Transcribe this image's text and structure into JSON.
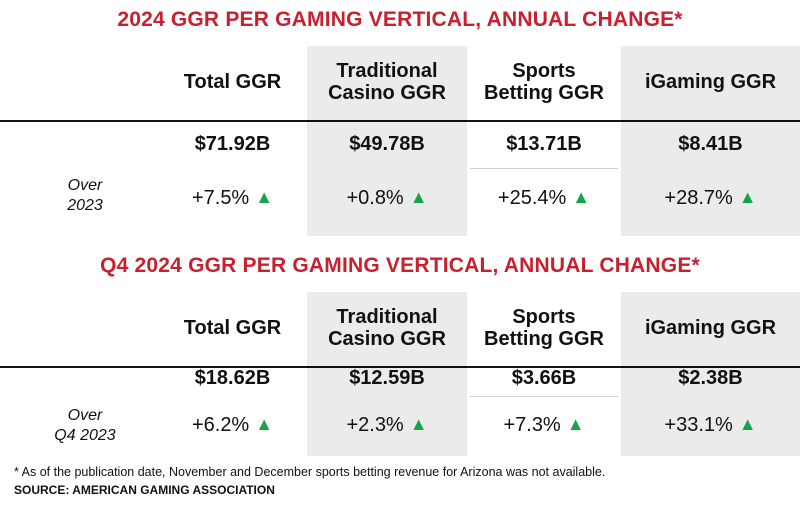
{
  "tables": [
    {
      "title": "2024 GGR PER GAMING VERTICAL, ANNUAL CHANGE*",
      "headers": [
        "Total GGR",
        "Traditional\nCasino GGR",
        "Sports\nBetting GGR",
        "iGaming GGR"
      ],
      "totals": [
        "$71.92B",
        "$49.78B",
        "$13.71B",
        "$8.41B"
      ],
      "row_label": "Over\n2023",
      "changes": [
        "+7.5%",
        "+0.8%",
        "+25.4%",
        "+28.7%"
      ]
    },
    {
      "title": "Q4 2024 GGR PER GAMING VERTICAL, ANNUAL CHANGE*",
      "headers": [
        "Total GGR",
        "Traditional\nCasino GGR",
        "Sports\nBetting GGR",
        "iGaming GGR"
      ],
      "totals": [
        "$18.62B",
        "$12.59B",
        "$3.66B",
        "$2.38B"
      ],
      "row_label": "Over\nQ4 2023",
      "changes": [
        "+6.2%",
        "+2.3%",
        "+7.3%",
        "+33.1%"
      ]
    }
  ],
  "up_icon": "▲",
  "footnote": "* As of the publication date, November and December sports betting revenue for Arizona was not available.",
  "source": "SOURCE: AMERICAN GAMING ASSOCIATION",
  "colors": {
    "title": "#c8202f",
    "arrow": "#16a34a",
    "shade": "#ebebeb"
  }
}
